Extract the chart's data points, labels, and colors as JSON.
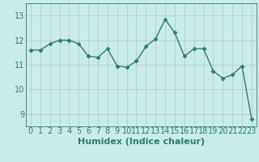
{
  "x": [
    0,
    1,
    2,
    3,
    4,
    5,
    6,
    7,
    8,
    9,
    10,
    11,
    12,
    13,
    14,
    15,
    16,
    17,
    18,
    19,
    20,
    21,
    22,
    23
  ],
  "y": [
    11.6,
    11.6,
    11.85,
    12.0,
    12.0,
    11.85,
    11.35,
    11.3,
    11.65,
    10.95,
    10.9,
    11.15,
    11.75,
    12.05,
    12.85,
    12.3,
    11.35,
    11.65,
    11.65,
    10.75,
    10.45,
    10.6,
    10.95,
    8.8
  ],
  "title": "",
  "xlabel": "Humidex (Indice chaleur)",
  "ylabel": "",
  "ylim": [
    8.5,
    13.5
  ],
  "xlim": [
    -0.5,
    23.5
  ],
  "yticks": [
    9,
    10,
    11,
    12,
    13
  ],
  "xticks": [
    0,
    1,
    2,
    3,
    4,
    5,
    6,
    7,
    8,
    9,
    10,
    11,
    12,
    13,
    14,
    15,
    16,
    17,
    18,
    19,
    20,
    21,
    22,
    23
  ],
  "line_color": "#2e7d6e",
  "marker": "D",
  "marker_size": 2.5,
  "bg_color": "#c8ecea",
  "grid_color": "#b0c8c4",
  "axis_color": "#2e7d6e",
  "xlabel_fontsize": 8,
  "tick_fontsize": 7,
  "linewidth": 1.0
}
